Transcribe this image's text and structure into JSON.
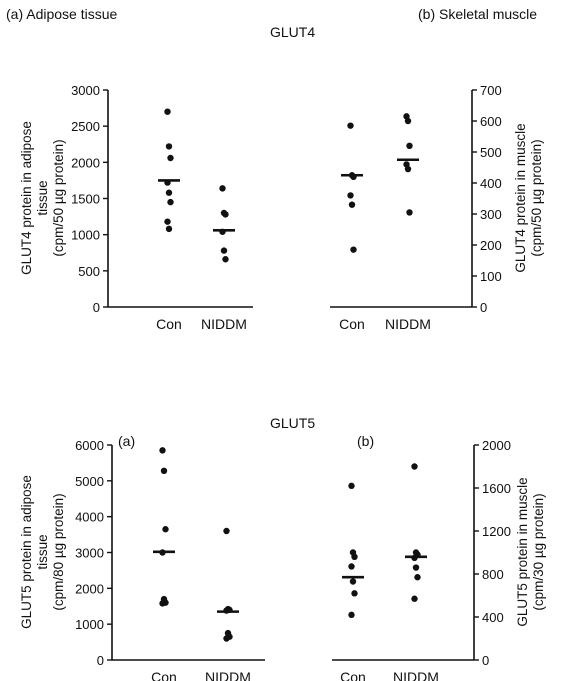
{
  "header": {
    "panel_a_label": "(a)  Adipose tissue",
    "panel_b_label": "(b)  Skeletal muscle",
    "glut4_title": "GLUT4",
    "glut5_title": "GLUT5",
    "glut5_a_label": "(a)",
    "glut5_b_label": "(b)"
  },
  "chart_data": [
    {
      "id": "glut4-adipose",
      "type": "scatter",
      "title": "GLUT4",
      "panel": "(a)  Adipose tissue",
      "categories": [
        "Con",
        "NIDDM"
      ],
      "ylabel_lines": [
        "GLUT4 protein in adipose",
        "tissue",
        "(cpm/50 µg protein)"
      ],
      "ylim": [
        0,
        3000
      ],
      "yticks": [
        0,
        500,
        1000,
        1500,
        2000,
        2500,
        3000
      ],
      "axis_side": "left",
      "points": [
        [
          2700,
          2220,
          2060,
          1720,
          1580,
          1450,
          1180,
          1080
        ],
        [
          1640,
          1300,
          1280,
          1040,
          780,
          660
        ]
      ],
      "means": [
        1750,
        1060
      ]
    },
    {
      "id": "glut4-muscle",
      "type": "scatter",
      "title": "GLUT4",
      "panel": "(b)  Skeletal muscle",
      "categories": [
        "Con",
        "NIDDM"
      ],
      "ylabel_lines": [
        "GLUT4 protein in muscle",
        "(cpm/50 µg protein)"
      ],
      "ylim": [
        0,
        700
      ],
      "yticks": [
        0,
        100,
        200,
        300,
        400,
        500,
        600,
        700
      ],
      "axis_side": "right",
      "points": [
        [
          585,
          425,
          420,
          360,
          330,
          185
        ],
        [
          615,
          600,
          520,
          460,
          445,
          305
        ]
      ],
      "means": [
        425,
        475
      ]
    },
    {
      "id": "glut5-adipose",
      "type": "scatter",
      "title": "GLUT5",
      "panel": "(a)",
      "categories": [
        "Con",
        "NIDDM"
      ],
      "ylabel_lines": [
        "GLUT5 protein in adipose",
        "tissue",
        "(cpm/80 µg protein)"
      ],
      "ylim": [
        0,
        6000
      ],
      "yticks": [
        0,
        1000,
        2000,
        3000,
        4000,
        5000,
        6000
      ],
      "axis_side": "left",
      "points": [
        [
          5850,
          5280,
          3650,
          3000,
          1700,
          1600,
          1580
        ],
        [
          3600,
          1420,
          1400,
          1380,
          750,
          650,
          600
        ]
      ],
      "means": [
        3020,
        1350
      ]
    },
    {
      "id": "glut5-muscle",
      "type": "scatter",
      "title": "GLUT5",
      "panel": "(b)",
      "categories": [
        "Con",
        "NIDDM"
      ],
      "ylabel_lines": [
        "GLUT5 protein in muscle",
        "(cpm/30 µg protein)"
      ],
      "ylim": [
        0,
        2000
      ],
      "yticks": [
        0,
        400,
        800,
        1200,
        1600,
        2000
      ],
      "axis_side": "right",
      "points": [
        [
          1620,
          1000,
          960,
          870,
          730,
          620,
          420
        ],
        [
          1800,
          1000,
          980,
          950,
          860,
          770,
          570
        ]
      ],
      "means": [
        770,
        960
      ]
    }
  ]
}
